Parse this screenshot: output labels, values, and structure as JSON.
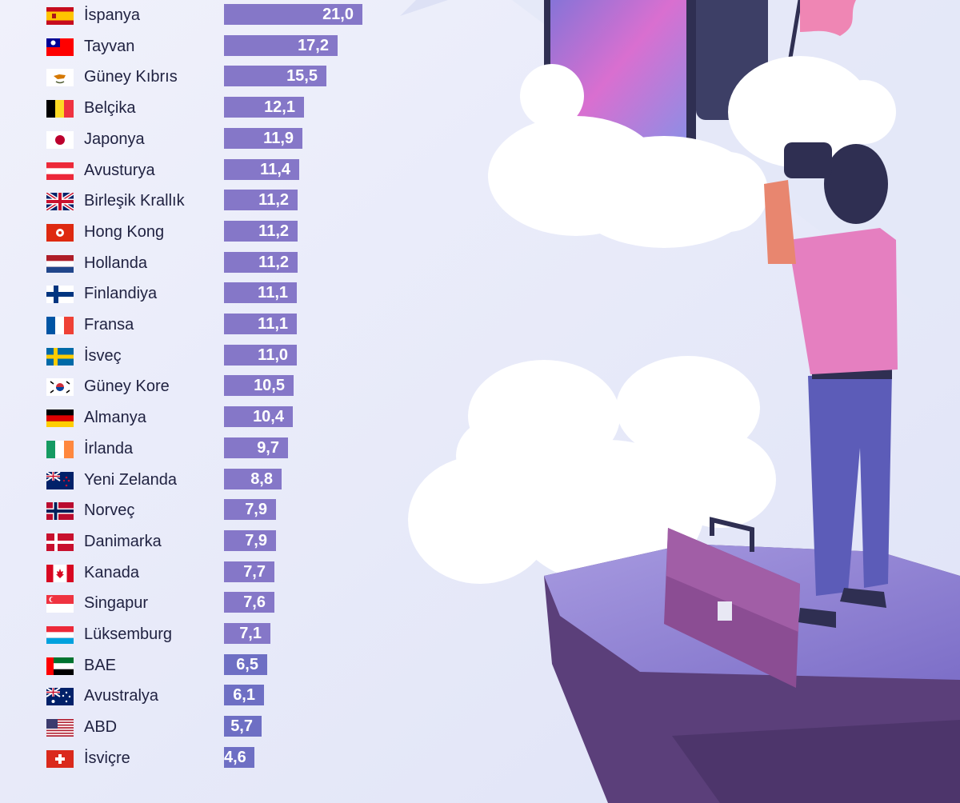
{
  "chart_data": {
    "type": "bar",
    "orientation": "horizontal",
    "categories": [
      "İspanya",
      "Tayvan",
      "Güney Kıbrıs",
      "Belçika",
      "Japonya",
      "Avusturya",
      "Birleşik Krallık",
      "Hong Kong",
      "Hollanda",
      "Finlandiya",
      "Fransa",
      "İsveç",
      "Güney Kore",
      "Almanya",
      "İrlanda",
      "Yeni Zelanda",
      "Norveç",
      "Danimarka",
      "Kanada",
      "Singapur",
      "Lüksemburg",
      "BAE",
      "Avustralya",
      "ABD",
      "İsviçre"
    ],
    "values": [
      21.0,
      17.2,
      15.5,
      12.1,
      11.9,
      11.4,
      11.2,
      11.2,
      11.2,
      11.1,
      11.1,
      11.0,
      10.5,
      10.4,
      9.7,
      8.8,
      7.9,
      7.9,
      7.7,
      7.6,
      7.1,
      6.5,
      6.1,
      5.7,
      4.6
    ],
    "value_labels": [
      "21,0",
      "17,2",
      "15,5",
      "12,1",
      "11,9",
      "11,4",
      "11,2",
      "11,2",
      "11,2",
      "11,1",
      "11,1",
      "11,0",
      "10,5",
      "10,4",
      "9,7",
      "8,8",
      "7,9",
      "7,9",
      "7,7",
      "7,6",
      "7,1",
      "6,5",
      "6,1",
      "5,7",
      "4,6"
    ],
    "flags": [
      "spain-flag",
      "taiwan-flag",
      "cyprus-flag",
      "belgium-flag",
      "japan-flag",
      "austria-flag",
      "uk-flag",
      "hong-kong-flag",
      "netherlands-flag",
      "finland-flag",
      "france-flag",
      "sweden-flag",
      "south-korea-flag",
      "germany-flag",
      "ireland-flag",
      "new-zealand-flag",
      "norway-flag",
      "denmark-flag",
      "canada-flag",
      "singapore-flag",
      "luxembourg-flag",
      "uae-flag",
      "australia-flag",
      "usa-flag",
      "switzerland-flag"
    ],
    "xlim": [
      0,
      21.0
    ],
    "grid": false,
    "legend": "none"
  },
  "colors": {
    "background": "#eef0fa",
    "bar": "#8577c8",
    "bar_low": "#6e6fc4",
    "label_text": "#1f2140",
    "value_text": "#ffffff"
  },
  "illustration": {
    "icons": [
      "smartphone-icon",
      "cloud-icon",
      "flag-icon",
      "person-with-binoculars-icon",
      "briefcase-icon",
      "cliff-icon"
    ]
  }
}
